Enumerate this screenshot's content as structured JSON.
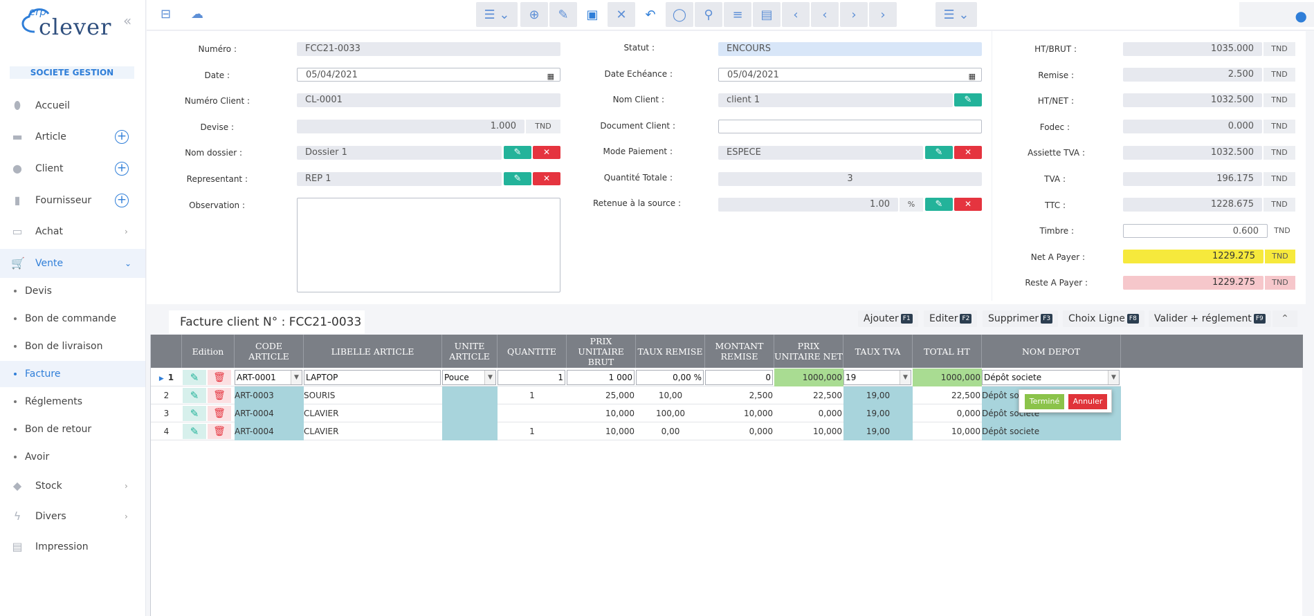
{
  "app": {
    "logo_small": "erp",
    "logo_main": "clever",
    "company": "SOCIETE GESTION"
  },
  "sidebar": {
    "items": [
      {
        "label": "Accueil",
        "icon": "home-icon"
      },
      {
        "label": "Article",
        "icon": "box-icon"
      },
      {
        "label": "Client",
        "icon": "user-icon"
      },
      {
        "label": "Fournisseur",
        "icon": "clipboard-icon"
      },
      {
        "label": "Achat",
        "icon": "inbox-icon"
      },
      {
        "label": "Vente",
        "icon": "cart-icon"
      },
      {
        "label": "Stock",
        "icon": "cube-icon"
      },
      {
        "label": "Divers",
        "icon": "bolt-icon"
      },
      {
        "label": "Impression",
        "icon": "printer-icon"
      }
    ],
    "vente_sub": [
      "Devis",
      "Bon de commande",
      "Bon de livraison",
      "Facture",
      "Réglements",
      "Bon de retour",
      "Avoir"
    ]
  },
  "form": {
    "numero_label": "Numéro :",
    "numero": "FCC21-0033",
    "date_label": "Date :",
    "date": "05/04/2021",
    "numero_client_label": "Numéro Client :",
    "numero_client": "CL-0001",
    "devise_label": "Devise :",
    "devise": "1.000",
    "devise_unit": "TND",
    "nom_dossier_label": "Nom dossier :",
    "nom_dossier": "Dossier 1",
    "representant_label": "Representant :",
    "representant": "REP 1",
    "observation_label": "Observation :",
    "observation": "",
    "statut_label": "Statut :",
    "statut": "ENCOURS",
    "date_echeance_label": "Date Echéance :",
    "date_echeance": "05/04/2021",
    "nom_client_label": "Nom Client :",
    "nom_client": "client 1",
    "document_client_label": "Document Client :",
    "document_client": "",
    "mode_paiement_label": "Mode Paiement :",
    "mode_paiement": "ESPECE",
    "quantite_totale_label": "Quantité Totale :",
    "quantite_totale": "3",
    "retenue_label": "Retenue à la source :",
    "retenue": "1.00",
    "retenue_unit": "%"
  },
  "totals": {
    "currency": "TND",
    "ht_brut_label": "HT/BRUT :",
    "ht_brut": "1035.000",
    "remise_label": "Remise :",
    "remise": "2.500",
    "ht_net_label": "HT/NET :",
    "ht_net": "1032.500",
    "fodec_label": "Fodec :",
    "fodec": "0.000",
    "assiette_label": "Assiette TVA :",
    "assiette": "1032.500",
    "tva_label": "TVA :",
    "tva": "196.175",
    "ttc_label": "TTC :",
    "ttc": "1228.675",
    "timbre_label": "Timbre :",
    "timbre": "0.600",
    "net_label": "Net A Payer :",
    "net": "1229.275",
    "reste_label": "Reste A Payer :",
    "reste": "1229.275"
  },
  "grid": {
    "tab_title": "Facture client N° : FCC21-0033",
    "actions": [
      {
        "label": "Ajouter",
        "key": "F1"
      },
      {
        "label": "Editer",
        "key": "F2"
      },
      {
        "label": "Supprimer",
        "key": "F3"
      },
      {
        "label": "Choix Ligne",
        "key": "F8"
      },
      {
        "label": "Valider + réglement",
        "key": "F9"
      }
    ],
    "headers": {
      "edition": "Edition",
      "code": "CODE ARTICLE",
      "libelle": "LIBELLE ARTICLE",
      "unite": "UNITE ARTICLE",
      "quantite": "QUANTITE",
      "pu_brut": "PRIX UNITAIRE BRUT",
      "taux_remise": "TAUX REMISE",
      "montant_remise": "MONTANT REMISE",
      "pu_net": "PRIX UNITAIRE NET",
      "taux_tva": "TAUX TVA",
      "total_ht": "TOTAL HT",
      "nom_depot": "NOM DEPOT"
    },
    "rows": [
      {
        "n": "1",
        "code": "ART-0001",
        "libelle": "LAPTOP",
        "unite": "Pouce",
        "quantite": "1",
        "pu_brut": "1 000",
        "taux_remise": "0,00 %",
        "montant_remise": "0",
        "pu_net": "1000,000",
        "taux_tva": "19",
        "total_ht": "1000,000",
        "depot": "Dépôt societe"
      },
      {
        "n": "2",
        "code": "ART-0003",
        "libelle": "SOURIS",
        "unite": "",
        "quantite": "1",
        "pu_brut": "25,000",
        "taux_remise": "10,00",
        "montant_remise": "2,500",
        "pu_net": "22,500",
        "taux_tva": "19,00",
        "total_ht": "22,500",
        "depot": "Dépôt societe"
      },
      {
        "n": "3",
        "code": "ART-0004",
        "libelle": "CLAVIER",
        "unite": "",
        "quantite": "",
        "pu_brut": "10,000",
        "taux_remise": "100,00",
        "montant_remise": "10,000",
        "pu_net": "0,000",
        "taux_tva": "19,00",
        "total_ht": "0,000",
        "depot": "Dépôt societe"
      },
      {
        "n": "4",
        "code": "ART-0004",
        "libelle": "CLAVIER",
        "unite": "",
        "quantite": "1",
        "pu_brut": "10,000",
        "taux_remise": "0,00",
        "montant_remise": "0,000",
        "pu_net": "10,000",
        "taux_tva": "19,00",
        "total_ht": "10,000",
        "depot": "Dépôt societe"
      }
    ],
    "popup": {
      "ok": "Terminé",
      "cancel": "Annuler"
    }
  }
}
